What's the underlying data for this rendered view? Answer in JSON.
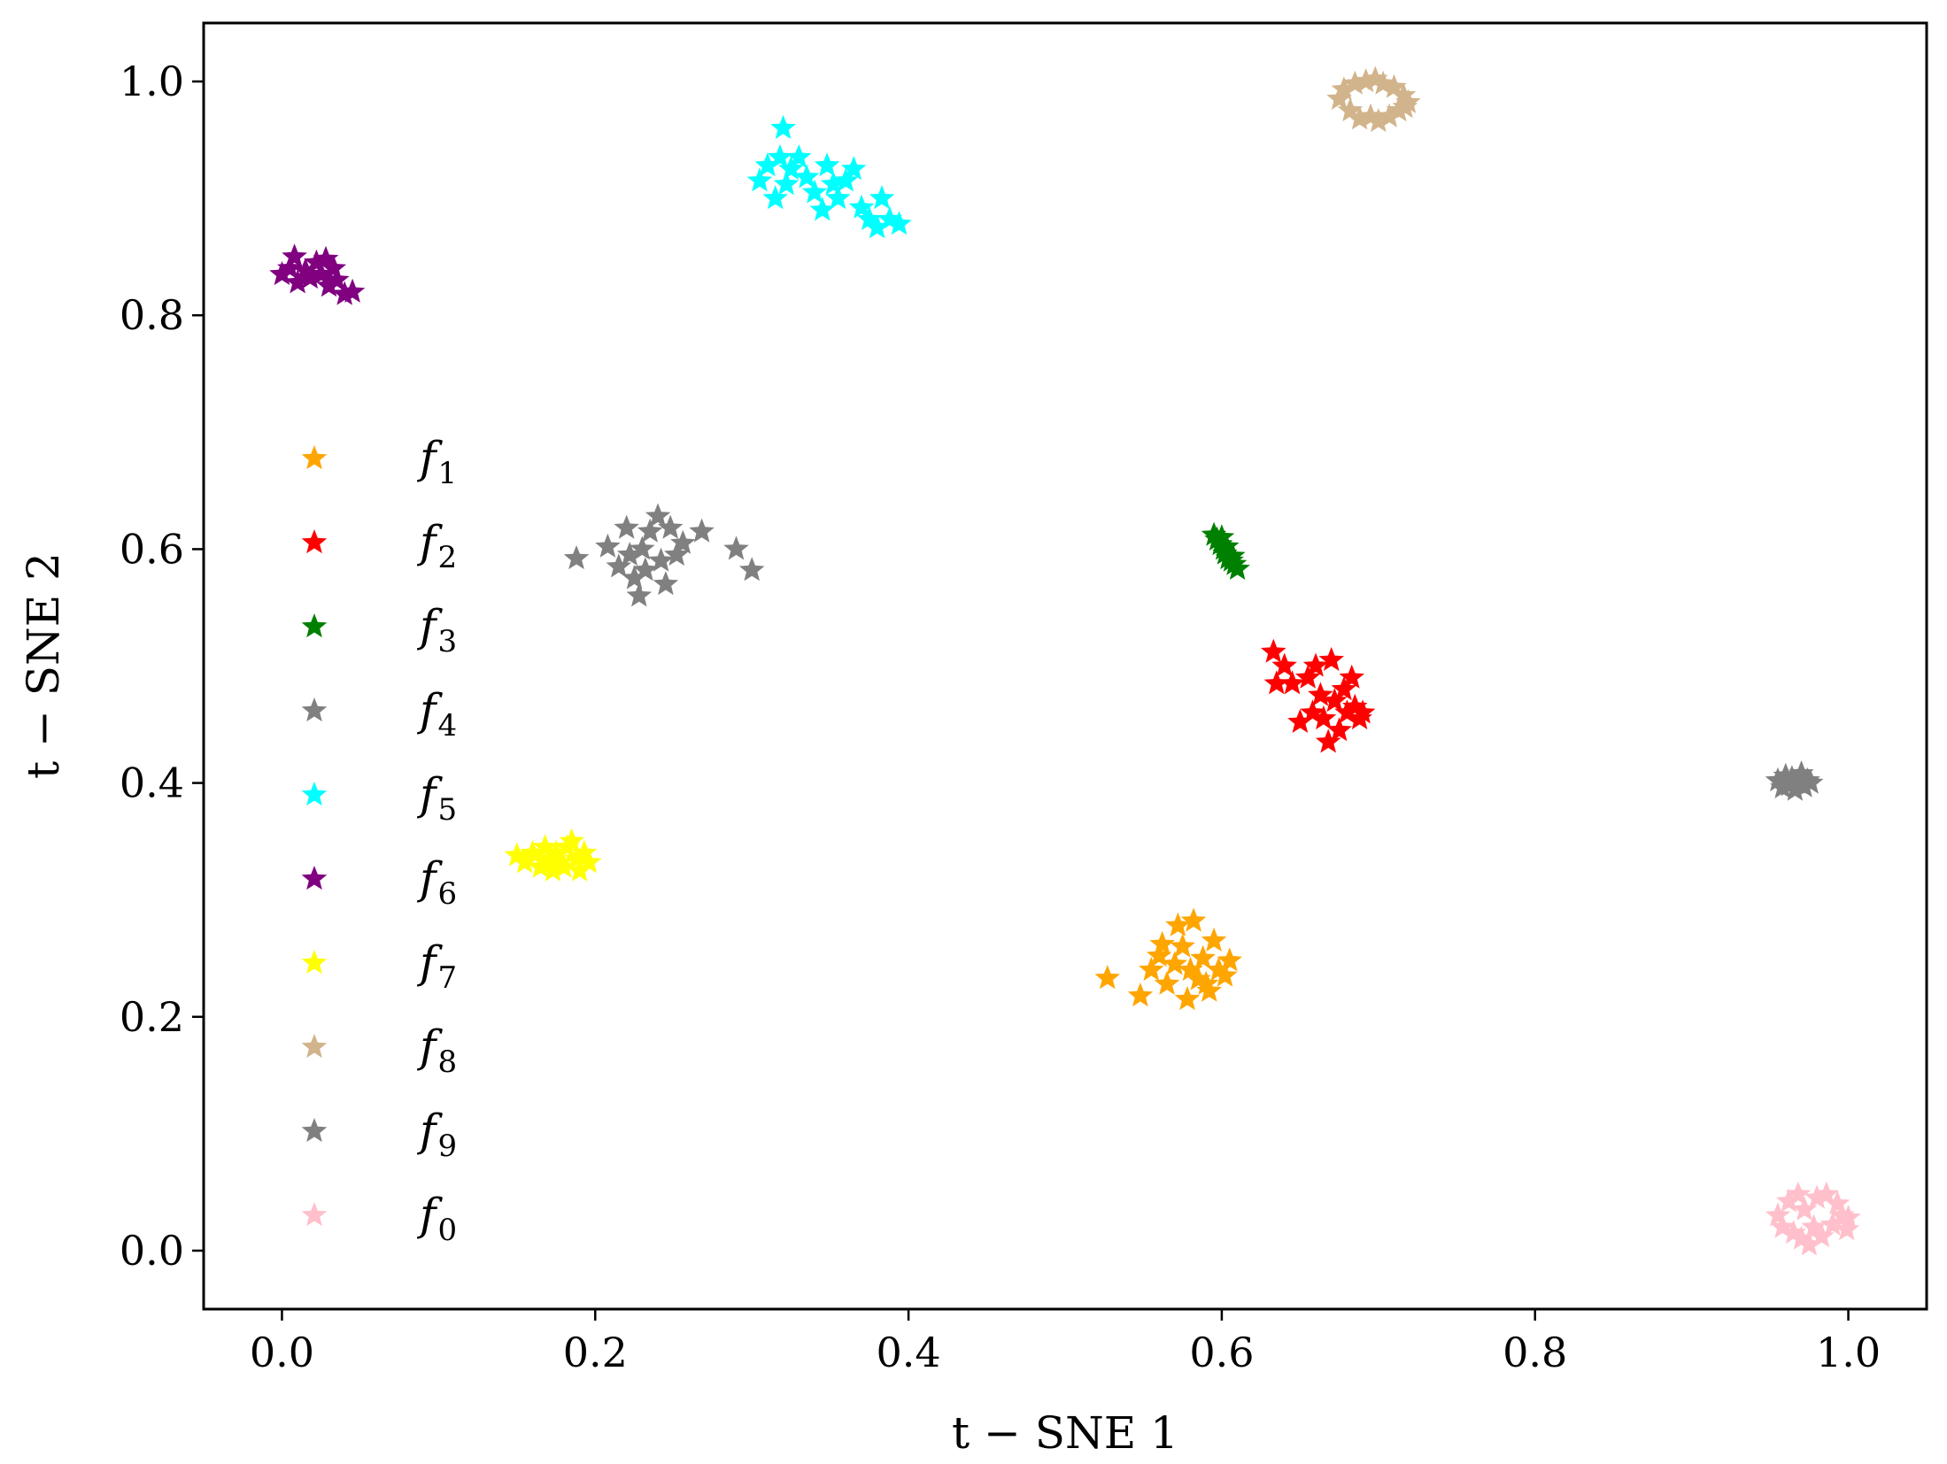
{
  "chart_data": {
    "type": "scatter",
    "title": "",
    "xlabel": "t − SNE 1",
    "ylabel": "t − SNE 2",
    "xlim": [
      -0.05,
      1.05
    ],
    "ylim": [
      -0.05,
      1.05
    ],
    "xticks": [
      0.0,
      0.2,
      0.4,
      0.6,
      0.8,
      1.0
    ],
    "xtick_labels": [
      "0.0",
      "0.2",
      "0.4",
      "0.6",
      "0.8",
      "1.0"
    ],
    "yticks": [
      0.0,
      0.2,
      0.4,
      0.6,
      0.8,
      1.0
    ],
    "ytick_labels": [
      "0.0",
      "0.2",
      "0.4",
      "0.6",
      "0.8",
      "1.0"
    ],
    "grid": false,
    "marker": "star",
    "legend_position": "center-left",
    "series": [
      {
        "name": "f",
        "sub": "1",
        "color": "#ffa500",
        "points": [
          [
            0.527,
            0.233
          ],
          [
            0.548,
            0.218
          ],
          [
            0.555,
            0.24
          ],
          [
            0.56,
            0.252
          ],
          [
            0.565,
            0.228
          ],
          [
            0.57,
            0.245
          ],
          [
            0.572,
            0.278
          ],
          [
            0.575,
            0.26
          ],
          [
            0.578,
            0.215
          ],
          [
            0.58,
            0.24
          ],
          [
            0.582,
            0.282
          ],
          [
            0.585,
            0.232
          ],
          [
            0.588,
            0.25
          ],
          [
            0.592,
            0.222
          ],
          [
            0.595,
            0.265
          ],
          [
            0.598,
            0.24
          ],
          [
            0.602,
            0.235
          ],
          [
            0.605,
            0.248
          ],
          [
            0.562,
            0.262
          ],
          [
            0.59,
            0.228
          ]
        ]
      },
      {
        "name": "f",
        "sub": "2",
        "color": "#ff0000",
        "points": [
          [
            0.633,
            0.512
          ],
          [
            0.635,
            0.485
          ],
          [
            0.64,
            0.5
          ],
          [
            0.645,
            0.485
          ],
          [
            0.65,
            0.452
          ],
          [
            0.655,
            0.49
          ],
          [
            0.658,
            0.46
          ],
          [
            0.66,
            0.5
          ],
          [
            0.663,
            0.475
          ],
          [
            0.665,
            0.455
          ],
          [
            0.668,
            0.435
          ],
          [
            0.67,
            0.505
          ],
          [
            0.672,
            0.47
          ],
          [
            0.675,
            0.445
          ],
          [
            0.678,
            0.48
          ],
          [
            0.68,
            0.46
          ],
          [
            0.683,
            0.49
          ],
          [
            0.685,
            0.465
          ],
          [
            0.688,
            0.455
          ],
          [
            0.69,
            0.46
          ]
        ]
      },
      {
        "name": "f",
        "sub": "3",
        "color": "#008000",
        "points": [
          [
            0.595,
            0.612
          ],
          [
            0.597,
            0.608
          ],
          [
            0.599,
            0.604
          ],
          [
            0.601,
            0.6
          ],
          [
            0.602,
            0.596
          ],
          [
            0.604,
            0.592
          ],
          [
            0.606,
            0.59
          ],
          [
            0.608,
            0.587
          ],
          [
            0.61,
            0.583
          ],
          [
            0.6,
            0.61
          ],
          [
            0.603,
            0.602
          ],
          [
            0.607,
            0.594
          ]
        ]
      },
      {
        "name": "f",
        "sub": "4",
        "color": "#808080",
        "points": [
          [
            0.188,
            0.592
          ],
          [
            0.208,
            0.602
          ],
          [
            0.215,
            0.585
          ],
          [
            0.22,
            0.618
          ],
          [
            0.222,
            0.595
          ],
          [
            0.225,
            0.575
          ],
          [
            0.228,
            0.56
          ],
          [
            0.23,
            0.6
          ],
          [
            0.232,
            0.582
          ],
          [
            0.235,
            0.615
          ],
          [
            0.24,
            0.628
          ],
          [
            0.242,
            0.59
          ],
          [
            0.245,
            0.57
          ],
          [
            0.248,
            0.618
          ],
          [
            0.252,
            0.595
          ],
          [
            0.256,
            0.605
          ],
          [
            0.268,
            0.615
          ],
          [
            0.29,
            0.6
          ],
          [
            0.3,
            0.582
          ]
        ]
      },
      {
        "name": "f",
        "sub": "5",
        "color": "#00ffff",
        "points": [
          [
            0.305,
            0.915
          ],
          [
            0.31,
            0.928
          ],
          [
            0.315,
            0.9
          ],
          [
            0.318,
            0.935
          ],
          [
            0.32,
            0.96
          ],
          [
            0.322,
            0.912
          ],
          [
            0.325,
            0.925
          ],
          [
            0.33,
            0.935
          ],
          [
            0.335,
            0.918
          ],
          [
            0.34,
            0.905
          ],
          [
            0.345,
            0.89
          ],
          [
            0.348,
            0.928
          ],
          [
            0.352,
            0.912
          ],
          [
            0.355,
            0.9
          ],
          [
            0.36,
            0.915
          ],
          [
            0.365,
            0.925
          ],
          [
            0.37,
            0.892
          ],
          [
            0.375,
            0.882
          ],
          [
            0.38,
            0.875
          ],
          [
            0.383,
            0.9
          ],
          [
            0.388,
            0.882
          ],
          [
            0.394,
            0.878
          ]
        ]
      },
      {
        "name": "f",
        "sub": "6",
        "color": "#800080",
        "points": [
          [
            0.0,
            0.835
          ],
          [
            0.005,
            0.84
          ],
          [
            0.008,
            0.85
          ],
          [
            0.01,
            0.828
          ],
          [
            0.015,
            0.838
          ],
          [
            0.018,
            0.832
          ],
          [
            0.022,
            0.845
          ],
          [
            0.025,
            0.835
          ],
          [
            0.028,
            0.848
          ],
          [
            0.03,
            0.825
          ],
          [
            0.033,
            0.84
          ],
          [
            0.035,
            0.83
          ],
          [
            0.04,
            0.818
          ],
          [
            0.045,
            0.82
          ]
        ]
      },
      {
        "name": "f",
        "sub": "7",
        "color": "#ffff00",
        "points": [
          [
            0.15,
            0.338
          ],
          [
            0.155,
            0.332
          ],
          [
            0.16,
            0.34
          ],
          [
            0.165,
            0.328
          ],
          [
            0.168,
            0.345
          ],
          [
            0.17,
            0.335
          ],
          [
            0.173,
            0.325
          ],
          [
            0.175,
            0.34
          ],
          [
            0.178,
            0.332
          ],
          [
            0.18,
            0.328
          ],
          [
            0.182,
            0.345
          ],
          [
            0.185,
            0.35
          ],
          [
            0.188,
            0.335
          ],
          [
            0.19,
            0.325
          ],
          [
            0.193,
            0.34
          ],
          [
            0.196,
            0.332
          ]
        ]
      },
      {
        "name": "f",
        "sub": "8",
        "color": "#d2b48c",
        "points": [
          [
            0.675,
            0.985
          ],
          [
            0.678,
            0.993
          ],
          [
            0.682,
            0.975
          ],
          [
            0.685,
            0.998
          ],
          [
            0.688,
            0.968
          ],
          [
            0.692,
            1.0
          ],
          [
            0.695,
            0.97
          ],
          [
            0.698,
            1.002
          ],
          [
            0.7,
            0.966
          ],
          [
            0.703,
            0.998
          ],
          [
            0.707,
            0.97
          ],
          [
            0.71,
            0.995
          ],
          [
            0.713,
            0.975
          ],
          [
            0.716,
            0.988
          ],
          [
            0.719,
            0.982
          ],
          [
            0.717,
            0.978
          ]
        ]
      },
      {
        "name": "f",
        "sub": "9",
        "color": "#808080",
        "points": [
          [
            0.955,
            0.402
          ],
          [
            0.958,
            0.396
          ],
          [
            0.96,
            0.406
          ],
          [
            0.962,
            0.398
          ],
          [
            0.964,
            0.404
          ],
          [
            0.966,
            0.394
          ],
          [
            0.968,
            0.4
          ],
          [
            0.97,
            0.408
          ],
          [
            0.972,
            0.397
          ],
          [
            0.974,
            0.402
          ],
          [
            0.976,
            0.4
          ]
        ]
      },
      {
        "name": "f",
        "sub": "0",
        "color": "#ffc0cb",
        "points": [
          [
            0.955,
            0.03
          ],
          [
            0.958,
            0.02
          ],
          [
            0.962,
            0.042
          ],
          [
            0.965,
            0.015
          ],
          [
            0.968,
            0.048
          ],
          [
            0.97,
            0.01
          ],
          [
            0.972,
            0.035
          ],
          [
            0.975,
            0.005
          ],
          [
            0.978,
            0.02
          ],
          [
            0.98,
            0.045
          ],
          [
            0.983,
            0.012
          ],
          [
            0.986,
            0.048
          ],
          [
            0.99,
            0.022
          ],
          [
            0.993,
            0.04
          ],
          [
            0.996,
            0.03
          ],
          [
            0.999,
            0.018
          ],
          [
            1.0,
            0.028
          ]
        ]
      }
    ]
  }
}
